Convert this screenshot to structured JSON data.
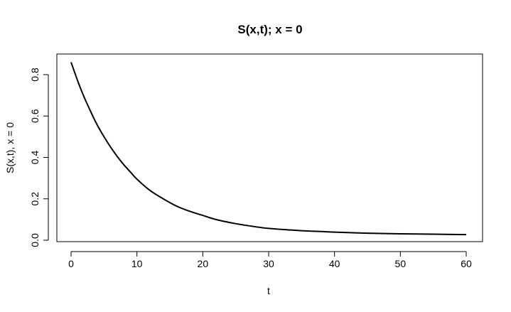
{
  "chart_data": {
    "type": "line",
    "title": "S(x,t); x = 0",
    "xlabel": "t",
    "ylabel": "S(x,t), x = 0",
    "xlim": [
      0,
      60
    ],
    "ylim": [
      0.0,
      0.85
    ],
    "x_ticks": [
      0,
      10,
      20,
      30,
      40,
      50,
      60
    ],
    "x_tick_labels": [
      "0",
      "10",
      "20",
      "30",
      "40",
      "50",
      "60"
    ],
    "y_ticks": [
      0.0,
      0.2,
      0.4,
      0.6,
      0.8
    ],
    "y_tick_labels": [
      "0.0",
      "0.2",
      "0.4",
      "0.6",
      "0.8"
    ],
    "grid": false,
    "legend": "none",
    "line_color": "#000000",
    "series": [
      {
        "x": [
          0,
          1,
          2,
          3,
          4,
          5,
          6,
          7,
          8,
          9,
          10,
          12,
          14,
          16,
          18,
          20,
          22,
          25,
          28,
          30,
          33,
          35,
          38,
          40,
          45,
          50,
          55,
          60
        ],
        "y": [
          0.86,
          0.77,
          0.69,
          0.62,
          0.555,
          0.5,
          0.45,
          0.405,
          0.365,
          0.33,
          0.295,
          0.24,
          0.2,
          0.165,
          0.14,
          0.12,
          0.1,
          0.08,
          0.065,
          0.057,
          0.05,
          0.046,
          0.042,
          0.039,
          0.034,
          0.031,
          0.029,
          0.027
        ]
      }
    ]
  }
}
